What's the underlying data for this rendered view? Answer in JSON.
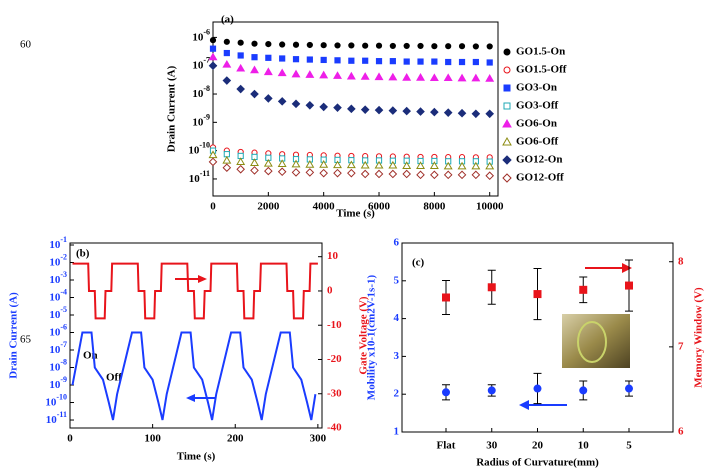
{
  "margin_numbers": [
    "60",
    "65"
  ],
  "chart_data": [
    {
      "type": "scatter",
      "annotation": "(a)",
      "xlabel": "Time (s)",
      "ylabel": "Drain Current (A)",
      "xlim": [
        0,
        10300
      ],
      "xticks": [
        0,
        2000,
        4000,
        6000,
        8000,
        10000
      ],
      "yscale": "log",
      "ylim": [
        2.5e-12,
        3.5e-06
      ],
      "yticks": [
        {
          "value": 1e-06,
          "label": "10-6"
        },
        {
          "value": 1e-07,
          "label": "10-7"
        },
        {
          "value": 1e-08,
          "label": "10-8"
        },
        {
          "value": 1e-09,
          "label": "10-9"
        },
        {
          "value": 1e-10,
          "label": "10-10"
        },
        {
          "value": 1e-11,
          "label": "10-11"
        }
      ],
      "legend": "right",
      "x": [
        0,
        500,
        1000,
        1500,
        2000,
        2500,
        3000,
        3500,
        4000,
        4500,
        5000,
        5500,
        6000,
        6500,
        7000,
        7500,
        8000,
        8500,
        9000,
        9500,
        10000
      ],
      "series": [
        {
          "name": "GO1.5-On",
          "color": "#000000",
          "marker": "circle",
          "filled": true,
          "values": [
            8e-07,
            7e-07,
            6.5e-07,
            6e-07,
            5.8e-07,
            5.6e-07,
            5.5e-07,
            5.4e-07,
            5.3e-07,
            5.2e-07,
            5.2e-07,
            5.1e-07,
            5.1e-07,
            5e-07,
            5e-07,
            5e-07,
            4.9e-07,
            4.9e-07,
            4.9e-07,
            4.8e-07,
            4.8e-07
          ]
        },
        {
          "name": "GO1.5-Off",
          "color": "#e8141b",
          "marker": "circle",
          "filled": false,
          "values": [
            1.3e-10,
            1e-10,
            9e-11,
            8.5e-11,
            8e-11,
            7.5e-11,
            7.2e-11,
            7e-11,
            6.8e-11,
            6.6e-11,
            6.5e-11,
            6.4e-11,
            6.3e-11,
            6.2e-11,
            6.1e-11,
            6e-11,
            6e-11,
            5.9e-11,
            5.9e-11,
            5.8e-11,
            5.8e-11
          ]
        },
        {
          "name": "GO3-On",
          "color": "#1a3cff",
          "marker": "square",
          "filled": true,
          "values": [
            4e-07,
            2.8e-07,
            2.3e-07,
            2e-07,
            1.9e-07,
            1.8e-07,
            1.7e-07,
            1.65e-07,
            1.6e-07,
            1.55e-07,
            1.5e-07,
            1.5e-07,
            1.45e-07,
            1.45e-07,
            1.4e-07,
            1.4e-07,
            1.4e-07,
            1.35e-07,
            1.35e-07,
            1.35e-07,
            1.3e-07
          ]
        },
        {
          "name": "GO3-Off",
          "color": "#1fa9b5",
          "marker": "square",
          "filled": false,
          "values": [
            1e-10,
            7.5e-11,
            6.5e-11,
            6e-11,
            5.6e-11,
            5.3e-11,
            5e-11,
            4.9e-11,
            4.8e-11,
            4.7e-11,
            4.6e-11,
            4.5e-11,
            4.5e-11,
            4.4e-11,
            4.4e-11,
            4.3e-11,
            4.3e-11,
            4.2e-11,
            4.2e-11,
            4.2e-11,
            4.1e-11
          ]
        },
        {
          "name": "GO6-On",
          "color": "#ee1fe8",
          "marker": "triangle",
          "filled": true,
          "values": [
            2e-07,
            1.1e-07,
            8e-08,
            7e-08,
            6e-08,
            5.5e-08,
            5e-08,
            4.8e-08,
            4.6e-08,
            4.4e-08,
            4.2e-08,
            4.1e-08,
            4e-08,
            3.9e-08,
            3.8e-08,
            3.8e-08,
            3.7e-08,
            3.7e-08,
            3.6e-08,
            3.6e-08,
            3.5e-08
          ]
        },
        {
          "name": "GO6-Off",
          "color": "#8c8c12",
          "marker": "triangle",
          "filled": false,
          "values": [
            7e-11,
            4.5e-11,
            4e-11,
            3.7e-11,
            3.5e-11,
            3.4e-11,
            3.3e-11,
            3.2e-11,
            3.2e-11,
            3.1e-11,
            3.1e-11,
            3e-11,
            3e-11,
            3e-11,
            2.9e-11,
            2.9e-11,
            2.9e-11,
            2.8e-11,
            2.8e-11,
            2.8e-11,
            2.8e-11
          ]
        },
        {
          "name": "GO12-On",
          "color": "#1b2d7a",
          "marker": "diamond",
          "filled": true,
          "values": [
            1e-07,
            3e-08,
            1.5e-08,
            1e-08,
            7e-09,
            5.5e-09,
            4.5e-09,
            4e-09,
            3.5e-09,
            3.3e-09,
            3e-09,
            2.8e-09,
            2.7e-09,
            2.6e-09,
            2.5e-09,
            2.4e-09,
            2.3e-09,
            2.2e-09,
            2.1e-09,
            2e-09,
            2e-09
          ]
        },
        {
          "name": "GO12-Off",
          "color": "#a0302a",
          "marker": "diamond",
          "filled": false,
          "values": [
            4e-11,
            2.5e-11,
            2.2e-11,
            2e-11,
            1.9e-11,
            1.8e-11,
            1.7e-11,
            1.7e-11,
            1.6e-11,
            1.6e-11,
            1.6e-11,
            1.5e-11,
            1.5e-11,
            1.5e-11,
            1.5e-11,
            1.4e-11,
            1.4e-11,
            1.4e-11,
            1.4e-11,
            1.4e-11,
            1.3e-11
          ]
        }
      ]
    },
    {
      "type": "line",
      "annotation": "(b)",
      "annotations": [
        "On",
        "Off"
      ],
      "xlabel": "Time (s)",
      "ylabel": "Drain Current (A)",
      "y2label": "Gate Voltage (V)",
      "xlim": [
        0,
        305
      ],
      "xticks": [
        0,
        100,
        200,
        300
      ],
      "yscale": "log",
      "ylim": [
        3.5e-12,
        0.13
      ],
      "ycolor": "#1a3cff",
      "yticks": [
        {
          "value": 0.1,
          "label": "10-1"
        },
        {
          "value": 0.01,
          "label": "10-2"
        },
        {
          "value": 0.001,
          "label": "10-3"
        },
        {
          "value": 0.0001,
          "label": "10-4"
        },
        {
          "value": 1e-05,
          "label": "10-5"
        },
        {
          "value": 1e-06,
          "label": "10-6"
        },
        {
          "value": 1e-07,
          "label": "10-7"
        },
        {
          "value": 1e-08,
          "label": "10-8"
        },
        {
          "value": 1e-09,
          "label": "10-9"
        },
        {
          "value": 1e-10,
          "label": "10-10"
        },
        {
          "value": 1e-11,
          "label": "10-11"
        }
      ],
      "y2lim": [
        -40,
        14
      ],
      "y2ticks": [
        10,
        0,
        -10,
        -20,
        -30,
        -40
      ],
      "y2color": "#e8141b",
      "series": [
        {
          "color": "#1a3cff",
          "x": [
            3,
            15,
            26,
            30,
            40,
            47,
            52,
            57,
            75,
            86,
            90,
            100,
            107,
            112,
            117,
            135,
            146,
            150,
            160,
            167,
            172,
            177,
            195,
            206,
            210,
            220,
            227,
            232,
            237,
            255,
            266,
            270,
            280,
            287,
            292,
            297
          ],
          "values": [
            1e-09,
            1e-06,
            1e-06,
            1e-08,
            2e-09,
            1e-10,
            1e-11,
            3e-10,
            1e-06,
            1e-06,
            1e-08,
            2e-09,
            1e-10,
            1e-11,
            3e-10,
            1e-06,
            1e-06,
            1e-08,
            2e-09,
            1e-10,
            1e-11,
            3e-10,
            1e-06,
            1e-06,
            1e-08,
            2e-09,
            1e-10,
            1e-11,
            3e-10,
            1e-06,
            1e-06,
            1e-08,
            2e-09,
            1e-10,
            1e-11,
            3e-10
          ]
        },
        {
          "color": "#e8141b",
          "axis": "y2",
          "x": [
            3,
            22,
            23,
            30,
            31,
            42,
            43,
            50,
            51,
            82,
            83,
            90,
            91,
            102,
            103,
            110,
            111,
            142,
            143,
            150,
            151,
            162,
            163,
            170,
            171,
            202,
            203,
            210,
            211,
            222,
            223,
            230,
            231,
            262,
            263,
            270,
            271,
            282,
            283,
            290,
            291,
            300
          ],
          "values": [
            8,
            8,
            0,
            0,
            -8,
            -8,
            0,
            0,
            8,
            8,
            0,
            0,
            -8,
            -8,
            0,
            0,
            8,
            8,
            0,
            0,
            -8,
            -8,
            0,
            0,
            8,
            8,
            0,
            0,
            -8,
            -8,
            0,
            0,
            8,
            8,
            0,
            0,
            -8,
            -8,
            0,
            0,
            8,
            8
          ]
        }
      ]
    },
    {
      "type": "errorbar",
      "annotation": "(c)",
      "xlabel": "Radius of Curvature(mm)",
      "ylabel": "Mobility x10-1(cm2V-1s-1)",
      "y2label": "Memory Window (V)",
      "categories": [
        "Flat",
        "30",
        "20",
        "10",
        "5"
      ],
      "ylim": [
        1,
        6
      ],
      "yticks": [
        1,
        2,
        3,
        4,
        5,
        6
      ],
      "ycolor": "#1a3cff",
      "y2lim": [
        6,
        8.22
      ],
      "y2ticks": [
        6,
        7,
        8
      ],
      "y2color": "#e8141b",
      "series": [
        {
          "color": "#1a3cff",
          "marker": "circle",
          "values": [
            2.05,
            2.1,
            2.15,
            2.1,
            2.15
          ],
          "errors": [
            0.2,
            0.15,
            0.4,
            0.25,
            0.2
          ]
        },
        {
          "color": "#e8141b",
          "marker": "square",
          "axis": "y2",
          "values": [
            7.58,
            7.7,
            7.62,
            7.67,
            7.72
          ],
          "errors": [
            0.2,
            0.2,
            0.3,
            0.15,
            0.3
          ]
        }
      ]
    }
  ]
}
